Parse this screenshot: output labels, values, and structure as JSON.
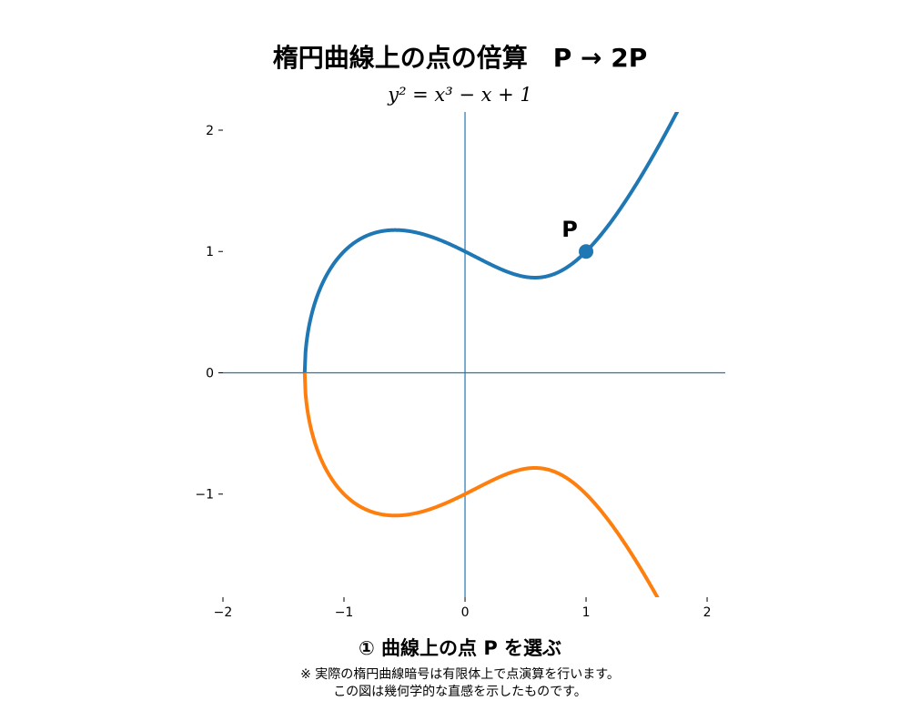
{
  "chart_data": {
    "type": "line",
    "title": "楕円曲線上の点の倍算　P → 2P",
    "subtitle": "y² = x³ − x + 1",
    "equation": {
      "a": -1,
      "b": 1
    },
    "xlabel": "",
    "ylabel": "",
    "xlim": [
      -2,
      2.15
    ],
    "ylim": [
      -1.85,
      2.15
    ],
    "xticks": [
      -2,
      -1,
      0,
      1,
      2
    ],
    "xtick_labels": [
      "−2",
      "−1",
      "0",
      "1",
      "2"
    ],
    "yticks": [
      -1,
      0,
      1,
      2
    ],
    "ytick_labels": [
      "−1",
      "0",
      "1",
      "2"
    ],
    "grid": false,
    "series": [
      {
        "branch": "upper",
        "color": "#1f77b4"
      },
      {
        "branch": "lower",
        "color": "#ff7f0e"
      }
    ],
    "axis_line_color": "#1f77b4",
    "points": [
      {
        "label": "P",
        "x": 1,
        "y": 1,
        "color": "#1f77b4"
      }
    ]
  },
  "caption": {
    "step": "① 曲線上の点 P を選ぶ",
    "note_line1": "※ 実際の楕円曲線暗号は有限体上で点演算を行います。",
    "note_line2": "この図は幾何学的な直感を示したものです。"
  }
}
